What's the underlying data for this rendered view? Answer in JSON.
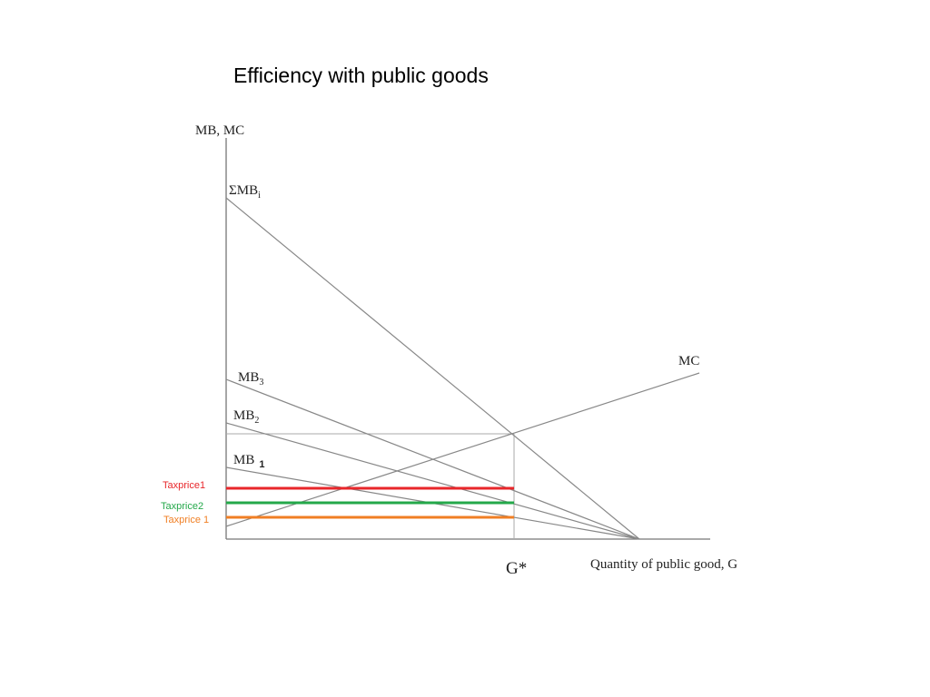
{
  "slide": {
    "title": "Efficiency with public goods"
  },
  "diagram": {
    "y_axis_label": "MB, MC",
    "x_axis_label": "Quantity of public good, G",
    "equilibrium_label": "G*",
    "curves": {
      "sum_mb": {
        "base": "ΣMB",
        "subscript": "i"
      },
      "mb3": {
        "base": "MB",
        "subscript": "3"
      },
      "mb2": {
        "base": "MB",
        "subscript": "2"
      },
      "mb1": {
        "base": "MB",
        "subscript": "1"
      },
      "mc": {
        "label": "MC"
      }
    },
    "tax_prices": [
      {
        "label": "Taxprice1",
        "color": "#e8262a"
      },
      {
        "label": "Taxprice2",
        "color": "#24a84a"
      },
      {
        "label": "Taxprice 1",
        "color": "#f07f24"
      }
    ],
    "colors": {
      "axis": "#777777",
      "curve": "#888888",
      "guide": "#aaaaaa"
    }
  }
}
